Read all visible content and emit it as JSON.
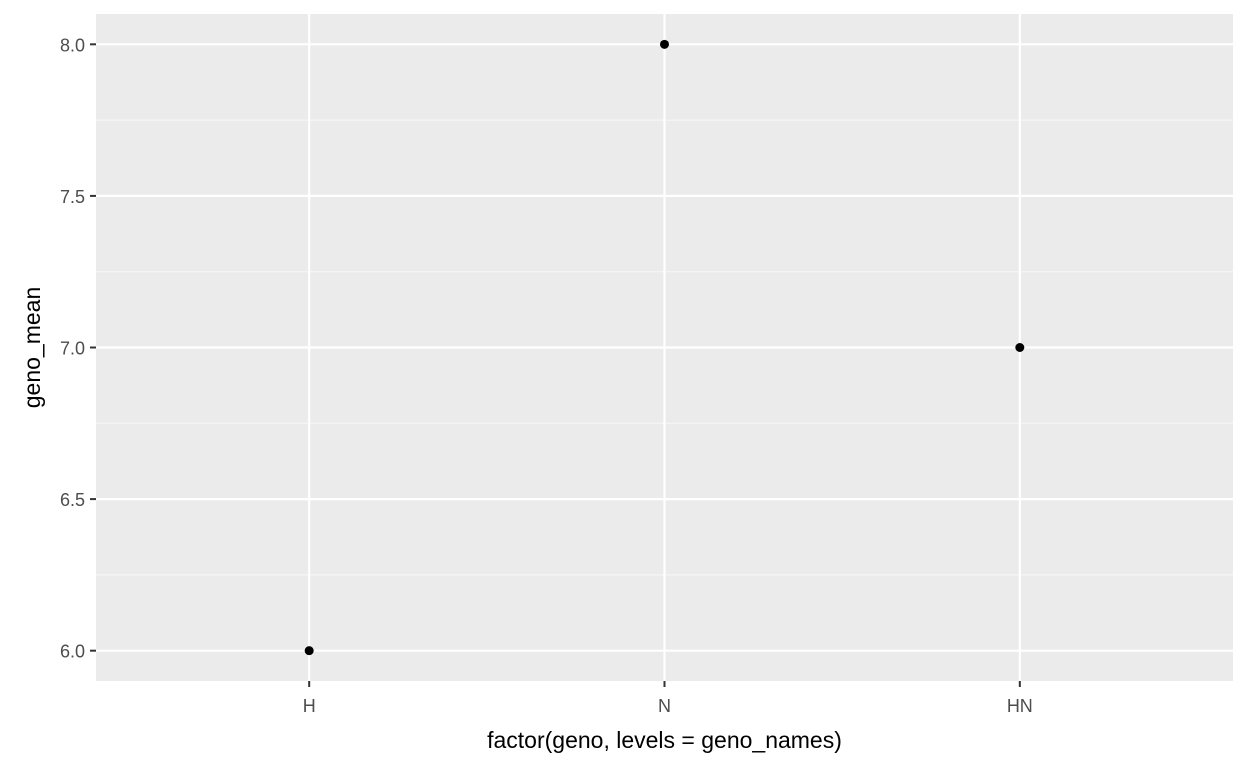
{
  "chart_data": {
    "type": "scatter",
    "categories": [
      "H",
      "N",
      "HN"
    ],
    "series": [
      {
        "values": [
          6.0,
          8.0,
          7.0
        ]
      }
    ],
    "xlabel": "factor(geno, levels = geno_names)",
    "ylabel": "geno_mean",
    "ylim": [
      5.9,
      8.1
    ],
    "yticks": [
      6.0,
      6.5,
      7.0,
      7.5,
      8.0
    ],
    "ytick_labels": [
      "6.0",
      "6.5",
      "7.0",
      "7.5",
      "8.0"
    ],
    "grid": true,
    "legend": "none",
    "colors": {
      "panel_background": "#ebebeb",
      "grid_major": "#ffffff",
      "grid_minor": "#f6f6f6",
      "point": "#000000",
      "tick": "#333333"
    }
  }
}
